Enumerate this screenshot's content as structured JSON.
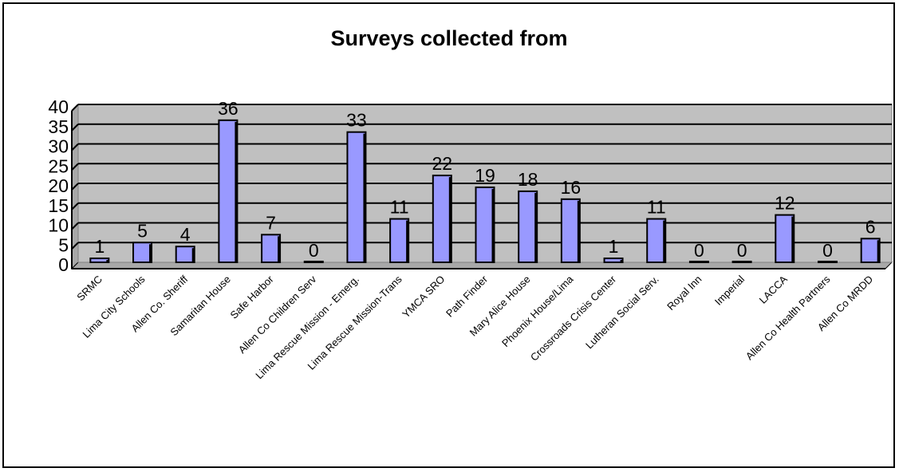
{
  "chart_data": {
    "type": "bar",
    "title": "Surveys collected from",
    "xlabel": "",
    "ylabel": "",
    "categories": [
      "SRMC",
      "Lima City Schools",
      "Allen Co. Sheriff",
      "Samaritan House",
      "Safe Harbor",
      "Allen Co Children Serv",
      "Lima Rescue Mission - Emerg.",
      "Lima Rescue Mission-Trans",
      "YMCA SRO",
      "Path Finder",
      "Mary Alice House",
      "Phoenix House/Lima",
      "Crossroads Crisis Center",
      "Lutheran Social Serv.",
      "Royal Inn",
      "Imperial",
      "LACCA",
      "Allen Co Health Partners",
      "Allen Co MRDD"
    ],
    "values": [
      1,
      5,
      4,
      36,
      7,
      0,
      33,
      11,
      22,
      19,
      18,
      16,
      1,
      11,
      0,
      0,
      12,
      0,
      6
    ],
    "ylim": [
      0,
      40
    ],
    "yticks": [
      0,
      5,
      10,
      15,
      20,
      25,
      30,
      35,
      40
    ],
    "grid": true,
    "legend": "none",
    "colors": {
      "bar_fill": "#9999ff",
      "bar_stroke": "#000000",
      "plot_background": "#c0c0c0",
      "gridline": "#000000"
    }
  }
}
